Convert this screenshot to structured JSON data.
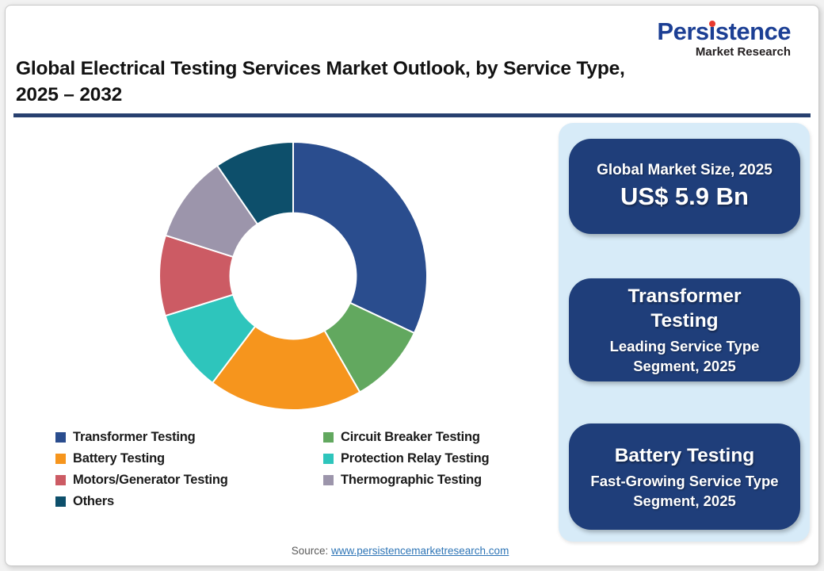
{
  "page": {
    "title_line1": "Global Electrical Testing Services Market Outlook, by Service Type,",
    "title_line2": "2025 – 2032"
  },
  "logo": {
    "name_part1": "Pers",
    "name_part_i": "i",
    "name_part2": "stence",
    "subtitle": "Market Research",
    "brand_blue": "#1c3f94",
    "dot_red": "#e8392f"
  },
  "chart_data": {
    "type": "pie",
    "subtype": "donut",
    "title": "Global Electrical Testing Services Market Outlook, by Service Type, 2025 – 2032",
    "start_angle_deg": 0,
    "clockwise": true,
    "inner_radius_ratio": 0.47,
    "gap_stroke_color": "#ffffff",
    "legend_position": "bottom",
    "values_are_estimated_percent": true,
    "segments": [
      {
        "label": "Transformer Testing",
        "value": 32.0,
        "color": "#2a4d8e"
      },
      {
        "label": "Circuit Breaker Testing",
        "value": 9.7,
        "color": "#62a85f"
      },
      {
        "label": "Battery Testing",
        "value": 18.6,
        "color": "#f6951d"
      },
      {
        "label": "Protection Relay Testing",
        "value": 9.9,
        "color": "#2ec5bc"
      },
      {
        "label": "Motors/Generator Testing",
        "value": 9.7,
        "color": "#cc5b64"
      },
      {
        "label": "Thermographic Testing",
        "value": 10.5,
        "color": "#9c95ab"
      },
      {
        "label": "Others",
        "value": 9.6,
        "color": "#0d4f6b"
      }
    ]
  },
  "sidebar": {
    "panel_background": "#d7ebf8",
    "card_background": "#1f3e7a",
    "cards": [
      {
        "title": "Global Market Size, 2025",
        "value": "US$ 5.9 Bn"
      },
      {
        "title": "Transformer Testing",
        "subtitle": "Leading Service Type Segment, 2025"
      },
      {
        "title": "Battery Testing",
        "subtitle": "Fast-Growing Service Type Segment, 2025"
      }
    ]
  },
  "footer": {
    "source_label": "Source:",
    "source_link": "www.persistencemarketresearch.com"
  }
}
